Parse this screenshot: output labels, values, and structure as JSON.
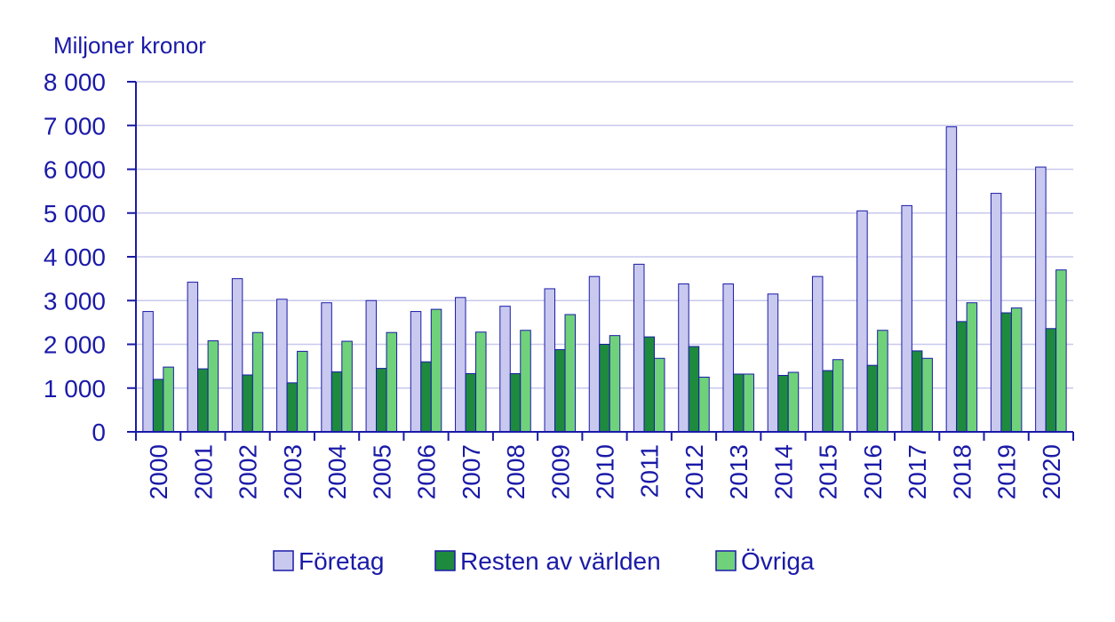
{
  "chart_data": {
    "type": "bar",
    "title": "",
    "xlabel": "",
    "ylabel": "Miljoner kronor",
    "ylim": [
      0,
      8000
    ],
    "yticks": [
      0,
      1000,
      2000,
      3000,
      4000,
      5000,
      6000,
      7000,
      8000
    ],
    "ytick_labels": [
      "0",
      "1 000",
      "2 000",
      "3 000",
      "4 000",
      "5 000",
      "6 000",
      "7 000",
      "8 000"
    ],
    "grid": true,
    "legend_position": "bottom",
    "categories": [
      "2000",
      "2001",
      "2002",
      "2003",
      "2004",
      "2005",
      "2006",
      "2007",
      "2008",
      "2009",
      "2010",
      "2011",
      "2012",
      "2013",
      "2014",
      "2015",
      "2016",
      "2017",
      "2018",
      "2019",
      "2020"
    ],
    "series": [
      {
        "name": "Företag",
        "color": "#c9c9f0",
        "values": [
          2750,
          3420,
          3500,
          3030,
          2950,
          3000,
          2750,
          3070,
          2870,
          3270,
          3550,
          3830,
          3380,
          3380,
          3150,
          3550,
          5050,
          5170,
          6970,
          5450,
          6050
        ]
      },
      {
        "name": "Resten av världen",
        "color": "#1e8a3e",
        "values": [
          1200,
          1440,
          1300,
          1120,
          1370,
          1450,
          1600,
          1330,
          1330,
          1880,
          2000,
          2170,
          1950,
          1320,
          1290,
          1400,
          1520,
          1850,
          2520,
          2720,
          2360
        ]
      },
      {
        "name": "Övriga",
        "color": "#6fd27a",
        "values": [
          1480,
          2080,
          2270,
          1840,
          2070,
          2270,
          2800,
          2280,
          2320,
          2680,
          2200,
          1680,
          1250,
          1320,
          1360,
          1650,
          2320,
          1680,
          2950,
          2830,
          3700
        ]
      }
    ]
  }
}
